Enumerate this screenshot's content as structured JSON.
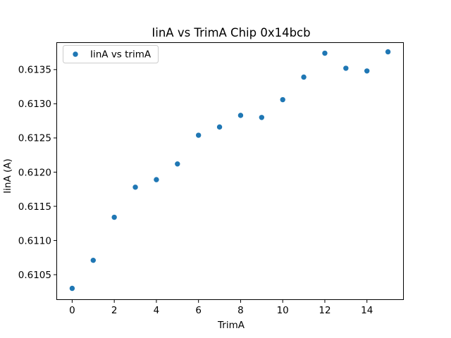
{
  "figure": {
    "background": "#ffffff",
    "frame_color": "#000000",
    "text_color": "#000000"
  },
  "chart_data": {
    "type": "scatter",
    "title": "IinA vs TrimA Chip 0x14bcb",
    "xlabel": "TrimA",
    "ylabel": "IinA (A)",
    "grid": false,
    "legend": {
      "position": "upper left",
      "entries": [
        {
          "label": "IinA vs trimA",
          "marker": "circle",
          "marker_color": "#1f77b4"
        }
      ]
    },
    "series": [
      {
        "name": "IinA vs trimA",
        "marker_color": "#1f77b4",
        "x": [
          0,
          1,
          2,
          3,
          4,
          5,
          6,
          7,
          8,
          9,
          10,
          11,
          12,
          13,
          14,
          15
        ],
        "y": [
          0.6103,
          0.61071,
          0.61134,
          0.61178,
          0.61189,
          0.61212,
          0.61254,
          0.61266,
          0.61283,
          0.6128,
          0.61306,
          0.61339,
          0.61374,
          0.61352,
          0.61348,
          0.61376
        ]
      }
    ],
    "xlim": [
      -0.75,
      15.75
    ],
    "ylim": [
      0.61013,
      0.6139
    ],
    "x_ticks": [
      0,
      2,
      4,
      6,
      8,
      10,
      12,
      14
    ],
    "x_tick_labels": [
      "0",
      "2",
      "4",
      "6",
      "8",
      "10",
      "12",
      "14"
    ],
    "y_ticks": [
      0.6105,
      0.611,
      0.6115,
      0.612,
      0.6125,
      0.613,
      0.6135
    ],
    "y_tick_labels": [
      "0.6105",
      "0.6110",
      "0.6115",
      "0.6120",
      "0.6125",
      "0.6130",
      "0.6135"
    ]
  }
}
